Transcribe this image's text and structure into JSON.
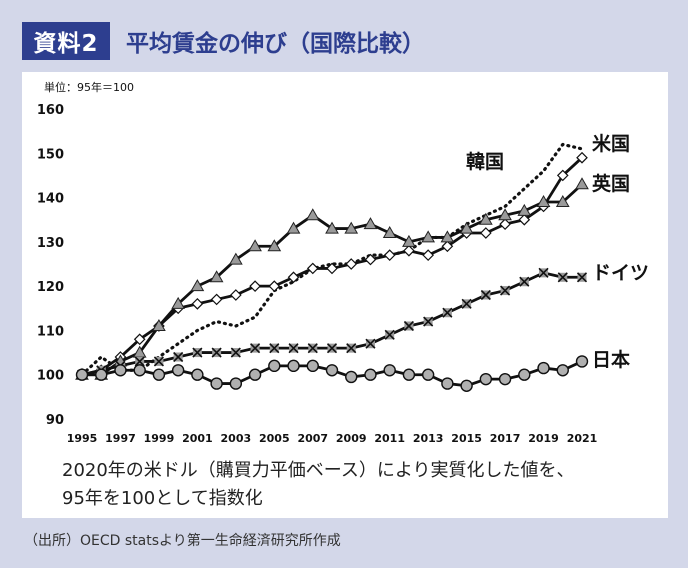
{
  "header": {
    "badge": "資料2",
    "title": "平均賃金の伸び（国際比較）"
  },
  "note": {
    "line1": "2020年の米ドル（購買力平価ベース）により実質化した値を、",
    "line2": "95年を100として指数化"
  },
  "source": "（出所）OECD statsより第一生命経済研究所作成",
  "chart_data": {
    "type": "line",
    "unit_label": "単位：95年＝100",
    "x": [
      1995,
      1996,
      1997,
      1998,
      1999,
      2000,
      2001,
      2002,
      2003,
      2004,
      2005,
      2006,
      2007,
      2008,
      2009,
      2010,
      2011,
      2012,
      2013,
      2014,
      2015,
      2016,
      2017,
      2018,
      2019,
      2020,
      2021
    ],
    "x_tick_labels": [
      "1995",
      "1997",
      "1999",
      "2001",
      "2003",
      "2005",
      "2007",
      "2009",
      "2011",
      "2013",
      "2015",
      "2017",
      "2019",
      "2021"
    ],
    "ylim": [
      90,
      160
    ],
    "y_ticks": [
      "90",
      "100",
      "110",
      "120",
      "130",
      "140",
      "150",
      "160"
    ],
    "series": [
      {
        "name": "米国",
        "marker": "diamond",
        "values": [
          100,
          101,
          104,
          108,
          111,
          115,
          116,
          117,
          118,
          120,
          120,
          122,
          124,
          124,
          125,
          126,
          127,
          128,
          127,
          129,
          132,
          132,
          134,
          135,
          138,
          145,
          149
        ]
      },
      {
        "name": "英国",
        "marker": "triangle",
        "values": [
          100,
          100,
          103,
          105,
          111,
          116,
          120,
          122,
          126,
          129,
          129,
          133,
          136,
          133,
          133,
          134,
          132,
          130,
          131,
          131,
          133,
          135,
          136,
          137,
          139,
          139,
          143
        ]
      },
      {
        "name": "韓国",
        "marker": "none",
        "values": [
          100,
          104,
          101,
          101,
          104,
          107,
          110,
          112,
          111,
          113,
          119,
          121,
          124,
          125,
          125,
          127,
          127,
          128,
          131,
          131,
          134,
          136,
          138,
          142,
          146,
          152,
          151
        ]
      },
      {
        "name": "ドイツ",
        "marker": "x",
        "values": [
          100,
          101,
          102,
          103,
          103,
          104,
          105,
          105,
          105,
          106,
          106,
          106,
          106,
          106,
          106,
          107,
          109,
          111,
          112,
          114,
          116,
          118,
          119,
          121,
          123,
          122,
          122
        ]
      },
      {
        "name": "日本",
        "marker": "circle",
        "values": [
          100,
          100,
          101,
          101,
          100,
          101,
          100,
          98,
          98,
          100,
          102,
          102,
          102,
          101,
          99.5,
          100,
          101,
          100,
          100,
          98,
          97.5,
          99,
          99,
          100,
          101.5,
          101,
          103
        ]
      }
    ]
  }
}
